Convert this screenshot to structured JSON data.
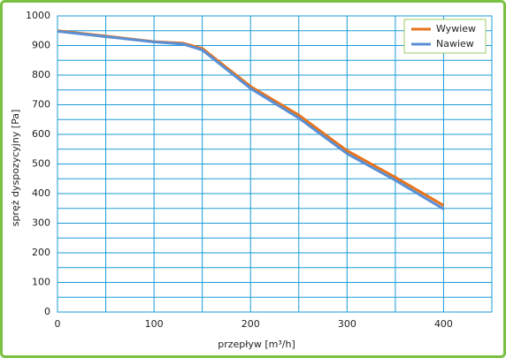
{
  "chart_data": {
    "type": "line",
    "x_label": "przepływ [m³/h]",
    "y_label": "spręż dyspozycyjny [Pa]",
    "xlim": [
      0,
      450
    ],
    "ylim": [
      0,
      1000
    ],
    "xticks": [
      0,
      100,
      200,
      300,
      400
    ],
    "xminorticks": [
      50,
      150,
      250,
      350,
      450
    ],
    "yticks": [
      0,
      100,
      200,
      300,
      400,
      500,
      600,
      700,
      800,
      900,
      1000
    ],
    "yminorticks": [
      50,
      150,
      250,
      350,
      450,
      550,
      650,
      750,
      850,
      950
    ],
    "grid": true,
    "legend": "upper right",
    "series": [
      {
        "name": "Wywiew",
        "color": "#e8731a",
        "x": [
          0,
          50,
          100,
          130,
          150,
          200,
          250,
          300,
          350,
          400
        ],
        "values": [
          950,
          932,
          913,
          908,
          890,
          762,
          665,
          545,
          455,
          360
        ]
      },
      {
        "name": "Nawiew",
        "color": "#5b8fd4",
        "x": [
          0,
          50,
          100,
          130,
          150,
          200,
          250,
          300,
          350,
          400
        ],
        "values": [
          948,
          930,
          912,
          905,
          885,
          755,
          655,
          535,
          445,
          348
        ]
      }
    ]
  }
}
